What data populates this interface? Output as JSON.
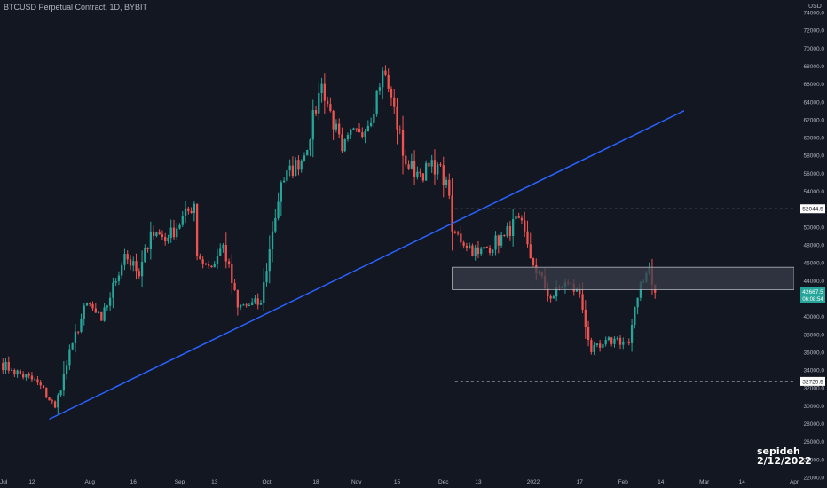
{
  "chart_title": "BTCUSD Perpetual Contract, 1D, BYBIT",
  "currency": "USD",
  "watermark_lines": [
    "sepideh",
    "2/12/2022"
  ],
  "colors": {
    "background": "#131722",
    "up": "#26a69a",
    "down": "#ef5350",
    "trendline": "#2962ff",
    "zone_fill": "#3a3e4a",
    "zone_border": "#b2b5be",
    "dashed": "#d1d4dc",
    "axis_text": "#b2b5be",
    "last_price_bg": "#26a69a",
    "level_label_bg": "#ffffff"
  },
  "chart_data": {
    "type": "candlestick",
    "title": "BTCUSD Perpetual Contract, 1D, BYBIT",
    "y_unit": "USD",
    "ylim": [
      22000,
      74000
    ],
    "yticks": [
      "74000.0",
      "72000.0",
      "70000.0",
      "68000.0",
      "66000.0",
      "64000.0",
      "62000.0",
      "60000.0",
      "58000.0",
      "56000.0",
      "54000.0",
      "52000.0",
      "50000.0",
      "48000.0",
      "46000.0",
      "44000.0",
      "42000.0",
      "40000.0",
      "38000.0",
      "36000.0",
      "34000.0",
      "32000.0",
      "30000.0",
      "28000.0",
      "26000.0",
      "24000.0",
      "22000.0"
    ],
    "xlim": [
      "2021-07-01",
      "2022-04-01"
    ],
    "xticks": [
      {
        "date": "2021-07-01",
        "label": "Jul"
      },
      {
        "date": "2021-07-12",
        "label": "12"
      },
      {
        "date": "2021-08-01",
        "label": "Aug"
      },
      {
        "date": "2021-08-16",
        "label": "16"
      },
      {
        "date": "2021-09-01",
        "label": "Sep"
      },
      {
        "date": "2021-09-13",
        "label": "13"
      },
      {
        "date": "2021-10-01",
        "label": "Oct"
      },
      {
        "date": "2021-10-18",
        "label": "18"
      },
      {
        "date": "2021-11-01",
        "label": "Nov"
      },
      {
        "date": "2021-11-15",
        "label": "15"
      },
      {
        "date": "2021-12-01",
        "label": "Dec"
      },
      {
        "date": "2021-12-13",
        "label": "13"
      },
      {
        "date": "2022-01-01",
        "label": "2022"
      },
      {
        "date": "2022-01-17",
        "label": "17"
      },
      {
        "date": "2022-02-01",
        "label": "Feb"
      },
      {
        "date": "2022-02-14",
        "label": "14"
      },
      {
        "date": "2022-03-01",
        "label": "Mar"
      },
      {
        "date": "2022-03-14",
        "label": "14"
      },
      {
        "date": "2022-04-01",
        "label": "Apr"
      }
    ],
    "ohlc_anchors": [
      {
        "date": "2021-07-01",
        "price": 34800
      },
      {
        "date": "2021-07-05",
        "price": 34000
      },
      {
        "date": "2021-07-14",
        "price": 32600
      },
      {
        "date": "2021-07-20",
        "price": 29800
      },
      {
        "date": "2021-07-26",
        "price": 37000
      },
      {
        "date": "2021-07-31",
        "price": 41500
      },
      {
        "date": "2021-08-05",
        "price": 39500
      },
      {
        "date": "2021-08-13",
        "price": 47000
      },
      {
        "date": "2021-08-18",
        "price": 44500
      },
      {
        "date": "2021-08-22",
        "price": 49500
      },
      {
        "date": "2021-08-28",
        "price": 48800
      },
      {
        "date": "2021-09-06",
        "price": 52600
      },
      {
        "date": "2021-09-07",
        "price": 46800
      },
      {
        "date": "2021-09-12",
        "price": 45500
      },
      {
        "date": "2021-09-16",
        "price": 48000
      },
      {
        "date": "2021-09-21",
        "price": 41000
      },
      {
        "date": "2021-09-29",
        "price": 41500
      },
      {
        "date": "2021-10-02",
        "price": 47500
      },
      {
        "date": "2021-10-06",
        "price": 55000
      },
      {
        "date": "2021-10-14",
        "price": 58000
      },
      {
        "date": "2021-10-20",
        "price": 66000
      },
      {
        "date": "2021-10-27",
        "price": 58500
      },
      {
        "date": "2021-11-01",
        "price": 61000
      },
      {
        "date": "2021-11-05",
        "price": 61300
      },
      {
        "date": "2021-11-10",
        "price": 67500
      },
      {
        "date": "2021-11-13",
        "price": 64500
      },
      {
        "date": "2021-11-18",
        "price": 57000
      },
      {
        "date": "2021-11-23",
        "price": 56000
      },
      {
        "date": "2021-11-29",
        "price": 57000
      },
      {
        "date": "2021-12-03",
        "price": 53500
      },
      {
        "date": "2021-12-04",
        "price": 49500
      },
      {
        "date": "2021-12-13",
        "price": 47000
      },
      {
        "date": "2021-12-22",
        "price": 49000
      },
      {
        "date": "2021-12-27",
        "price": 51000
      },
      {
        "date": "2021-12-31",
        "price": 46500
      },
      {
        "date": "2022-01-07",
        "price": 42000
      },
      {
        "date": "2022-01-12",
        "price": 43800
      },
      {
        "date": "2022-01-17",
        "price": 42500
      },
      {
        "date": "2022-01-21",
        "price": 36000
      },
      {
        "date": "2022-01-24",
        "price": 36500
      },
      {
        "date": "2022-01-29",
        "price": 37500
      },
      {
        "date": "2022-02-03",
        "price": 37000
      },
      {
        "date": "2022-02-07",
        "price": 43800
      },
      {
        "date": "2022-02-10",
        "price": 45500
      },
      {
        "date": "2022-02-12",
        "price": 42667.5
      }
    ],
    "annotations": {
      "trendline": {
        "start": {
          "date": "2021-07-18",
          "price": 28500
        },
        "end": {
          "date": "2022-02-22",
          "price": 63000
        }
      },
      "resistance_level": {
        "price": 52044.5,
        "label": "52044.5",
        "from": "2021-12-05"
      },
      "support_level": {
        "price": 32729.5,
        "label": "32729.5",
        "from": "2021-12-05"
      },
      "zone": {
        "top": 45500,
        "bottom": 43000,
        "from": "2021-12-04",
        "to": "2022-04-01"
      },
      "last_price": {
        "price": 42667.5,
        "label": "42667.5",
        "countdown": "06:08:54"
      }
    }
  }
}
